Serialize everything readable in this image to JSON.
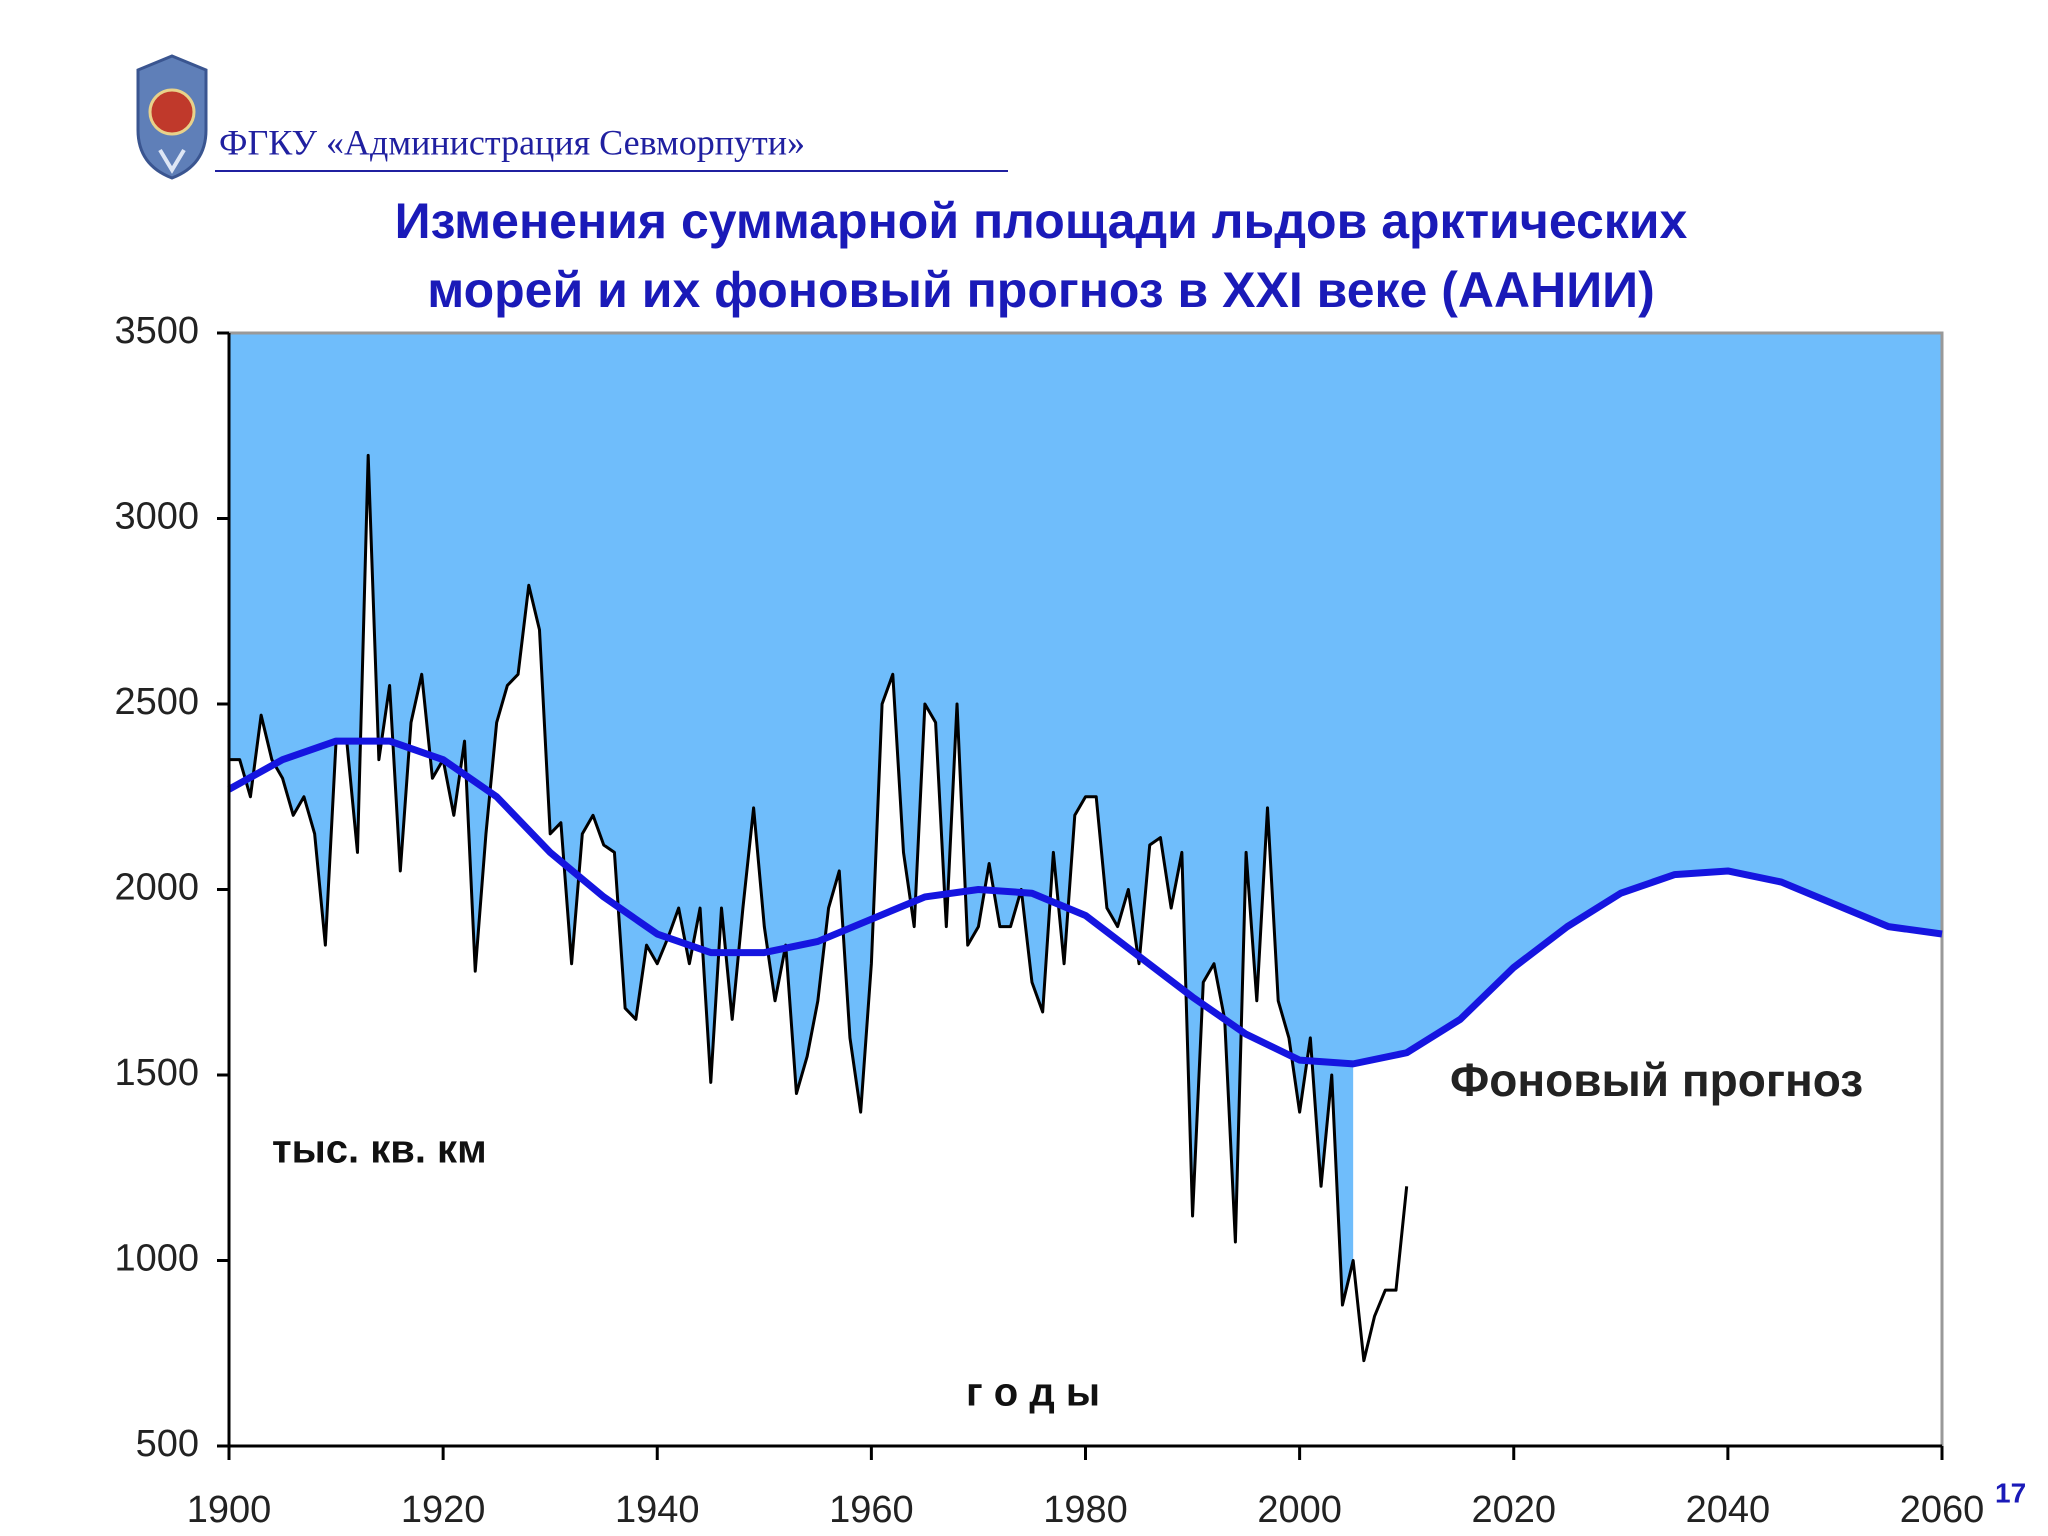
{
  "header": "ФГКУ «Администрация Севморпути»",
  "page_number": "17",
  "chart_data": {
    "type": "line",
    "title": [
      "Изменения суммарной площади льдов арктических",
      "морей и их фоновый прогноз в XXI веке (ААНИИ)"
    ],
    "ylabel": "тыс. кв. км",
    "xlabel": "г о д ы",
    "xlim": [
      1900,
      2060
    ],
    "xticks": [
      1900,
      1920,
      1940,
      1960,
      1980,
      2000,
      2020,
      2040,
      2060
    ],
    "ylim": [
      500,
      3500
    ],
    "yticks": [
      500,
      1000,
      1500,
      2000,
      2500,
      3000,
      3500
    ],
    "fill_color": "#6fbdfb",
    "series": [
      {
        "color": "#000000",
        "x": [
          1900,
          1901,
          1902,
          1903,
          1904,
          1905,
          1906,
          1907,
          1908,
          1909,
          1910,
          1911,
          1912,
          1913,
          1914,
          1915,
          1916,
          1917,
          1918,
          1919,
          1920,
          1921,
          1922,
          1923,
          1924,
          1925,
          1926,
          1927,
          1928,
          1929,
          1930,
          1931,
          1932,
          1933,
          1934,
          1935,
          1936,
          1937,
          1938,
          1939,
          1940,
          1941,
          1942,
          1943,
          1944,
          1945,
          1946,
          1947,
          1948,
          1949,
          1950,
          1951,
          1952,
          1953,
          1954,
          1955,
          1956,
          1957,
          1958,
          1959,
          1960,
          1961,
          1962,
          1963,
          1964,
          1965,
          1966,
          1967,
          1968,
          1969,
          1970,
          1971,
          1972,
          1973,
          1974,
          1975,
          1976,
          1977,
          1978,
          1979,
          1980,
          1981,
          1982,
          1983,
          1984,
          1985,
          1986,
          1987,
          1988,
          1989,
          1990,
          1991,
          1992,
          1993,
          1994,
          1995,
          1996,
          1997,
          1998,
          1999,
          2000,
          2001,
          2002,
          2003,
          2004,
          2005,
          2006,
          2007,
          2008,
          2009,
          2010
        ],
        "values": [
          2350,
          2350,
          2250,
          2470,
          2350,
          2300,
          2200,
          2250,
          2150,
          1850,
          2400,
          2400,
          2100,
          3170,
          2350,
          2550,
          2050,
          2450,
          2580,
          2300,
          2350,
          2200,
          2400,
          1780,
          2150,
          2450,
          2550,
          2580,
          2820,
          2700,
          2150,
          2180,
          1800,
          2150,
          2200,
          2120,
          2100,
          1680,
          1650,
          1850,
          1800,
          1870,
          1950,
          1800,
          1950,
          1480,
          1950,
          1650,
          1950,
          2220,
          1900,
          1700,
          1850,
          1450,
          1550,
          1700,
          1950,
          2050,
          1600,
          1400,
          1800,
          2500,
          2580,
          2100,
          1900,
          2500,
          2450,
          1900,
          2500,
          1850,
          1900,
          2070,
          1900,
          1900,
          2000,
          1750,
          1670,
          2100,
          1800,
          2200,
          2250,
          2250,
          1950,
          1900,
          2000,
          1800,
          2120,
          2140,
          1950,
          2100,
          1120,
          1750,
          1800,
          1650,
          1050,
          2100,
          1700,
          2220,
          1700,
          1600,
          1400,
          1600,
          1200,
          1500,
          880,
          1000,
          730,
          850,
          920,
          920,
          1200
        ]
      },
      {
        "name": "Фоновый прогноз",
        "color": "#1515e0",
        "x": [
          1900,
          1905,
          1910,
          1915,
          1920,
          1925,
          1930,
          1935,
          1940,
          1945,
          1950,
          1955,
          1960,
          1965,
          1970,
          1975,
          1980,
          1985,
          1990,
          1995,
          2000,
          2005,
          2010,
          2015,
          2020,
          2025,
          2030,
          2035,
          2040,
          2045,
          2050,
          2055,
          2060
        ],
        "values": [
          2270,
          2350,
          2400,
          2400,
          2350,
          2250,
          2100,
          1980,
          1880,
          1830,
          1830,
          1860,
          1920,
          1980,
          2000,
          1990,
          1930,
          1820,
          1710,
          1610,
          1540,
          1530,
          1560,
          1650,
          1790,
          1900,
          1990,
          2040,
          2050,
          2020,
          1960,
          1900,
          1880
        ]
      }
    ]
  }
}
